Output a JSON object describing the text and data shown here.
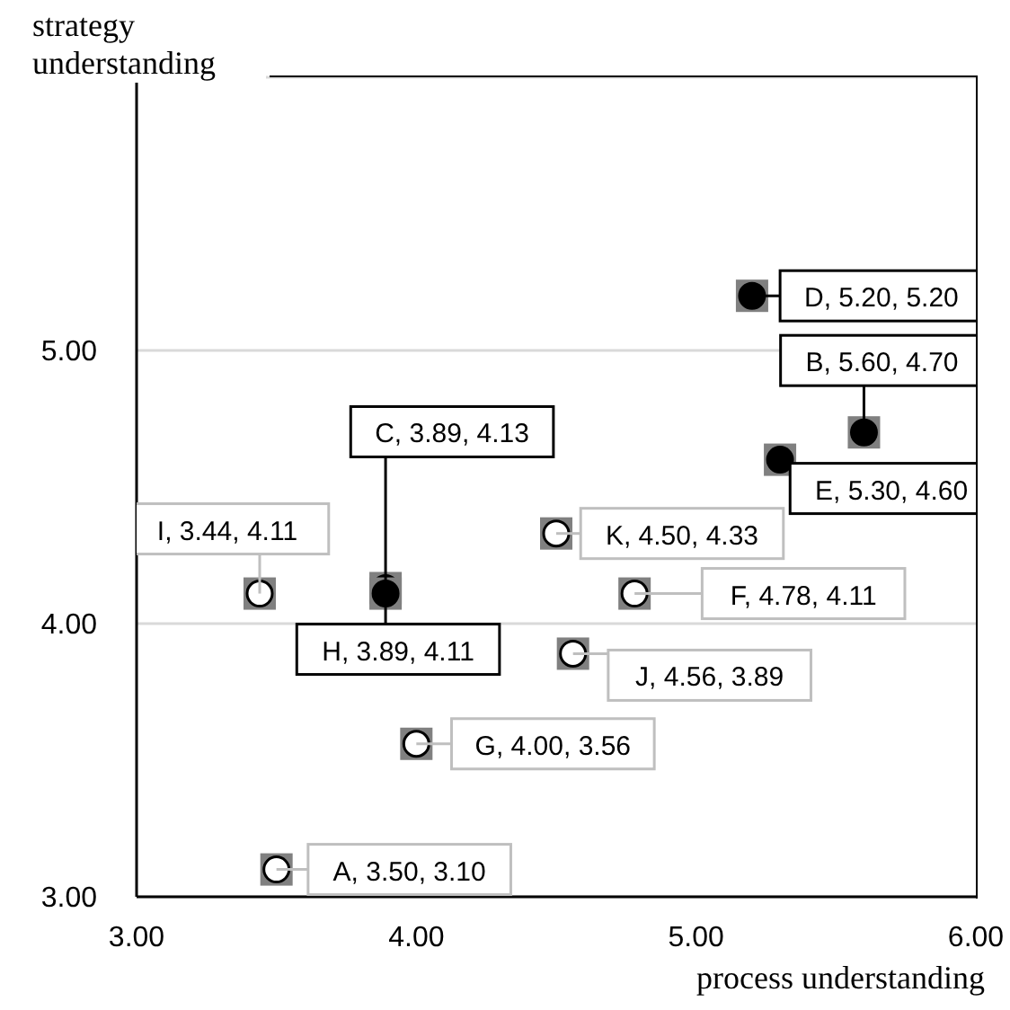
{
  "chart_data": {
    "type": "scatter",
    "xlabel": "process understanding",
    "ylabel": "strategy understanding",
    "x": [
      3.5,
      5.6,
      3.89,
      5.2,
      5.3,
      4.78,
      4.0,
      3.89,
      3.44,
      4.56,
      4.5
    ],
    "values": [
      3.1,
      4.7,
      4.13,
      5.2,
      4.6,
      4.11,
      3.56,
      4.11,
      4.11,
      3.89,
      4.33
    ],
    "colors": [
      "#ffffff",
      "#000000",
      "#000000",
      "#000000",
      "#000000",
      "#ffffff",
      "#ffffff",
      "#000000",
      "#ffffff",
      "#ffffff",
      "#ffffff"
    ],
    "value_labels": [
      "A, 3.50, 3.10",
      "B, 5.60, 4.70",
      "C, 3.89, 4.13",
      "D, 5.20, 5.20",
      "E, 5.30, 4.60",
      "F, 4.78, 4.11",
      "G, 4.00, 3.56",
      "H, 3.89, 4.11",
      "I, 3.44, 4.11",
      "J, 4.56, 3.89",
      "K, 4.50, 4.33"
    ],
    "xlim": [
      3,
      6
    ],
    "xticks": [
      {
        "value": 3,
        "label": "3.00"
      },
      {
        "value": 4,
        "label": "4.00"
      },
      {
        "value": 5,
        "label": "5.00"
      },
      {
        "value": 6,
        "label": "6.00"
      }
    ],
    "ylim": [
      3,
      6
    ],
    "yticks": [
      {
        "value": 3,
        "label": "3.00"
      },
      {
        "value": 4,
        "label": "4.00"
      },
      {
        "value": 5,
        "label": "5.00"
      },
      {
        "value": 6,
        "label": null
      }
    ],
    "grid": "y",
    "marker": "circle"
  }
}
